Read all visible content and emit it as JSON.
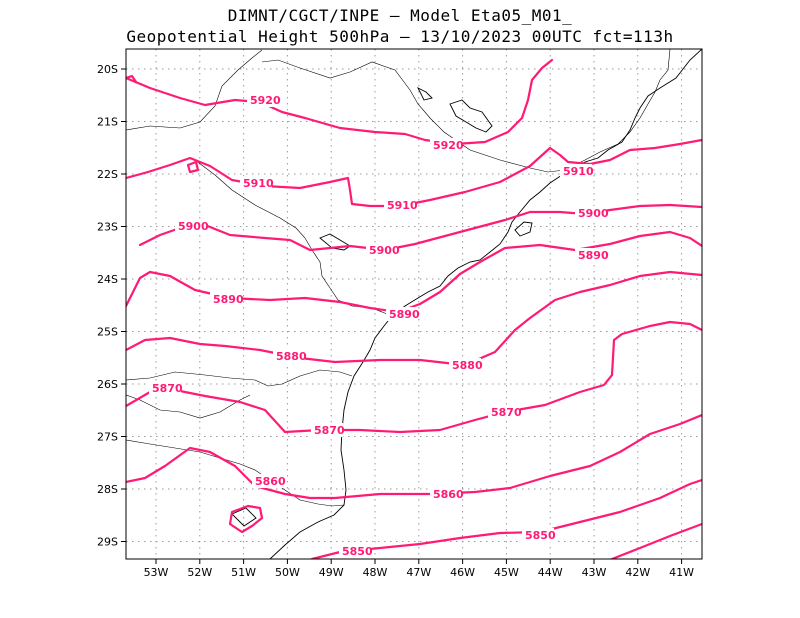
{
  "header": {
    "line1": "DIMNT/CGCT/INPE –  Model Eta05_M01_",
    "line2": "Geopotential Height 500hPa –  13/10/2023 00UTC fct=113h"
  },
  "axes": {
    "lat_ticks": [
      "20S",
      "21S",
      "22S",
      "23S",
      "24S",
      "25S",
      "26S",
      "27S",
      "28S",
      "29S"
    ],
    "lon_ticks": [
      "53W",
      "52W",
      "51W",
      "50W",
      "49W",
      "48W",
      "47W",
      "46W",
      "45W",
      "44W",
      "43W",
      "42W",
      "41W"
    ]
  },
  "colors": {
    "contour": "#ff1a75",
    "coast": "#000000",
    "grid": "#9a9a9a"
  },
  "contour_labels": [
    "5920",
    "5920",
    "5910",
    "5910",
    "5910",
    "5900",
    "5900",
    "5900",
    "5890",
    "5890",
    "5890",
    "5880",
    "5880",
    "5870",
    "5870",
    "5870",
    "5860",
    "5860",
    "5850",
    "5850"
  ]
}
